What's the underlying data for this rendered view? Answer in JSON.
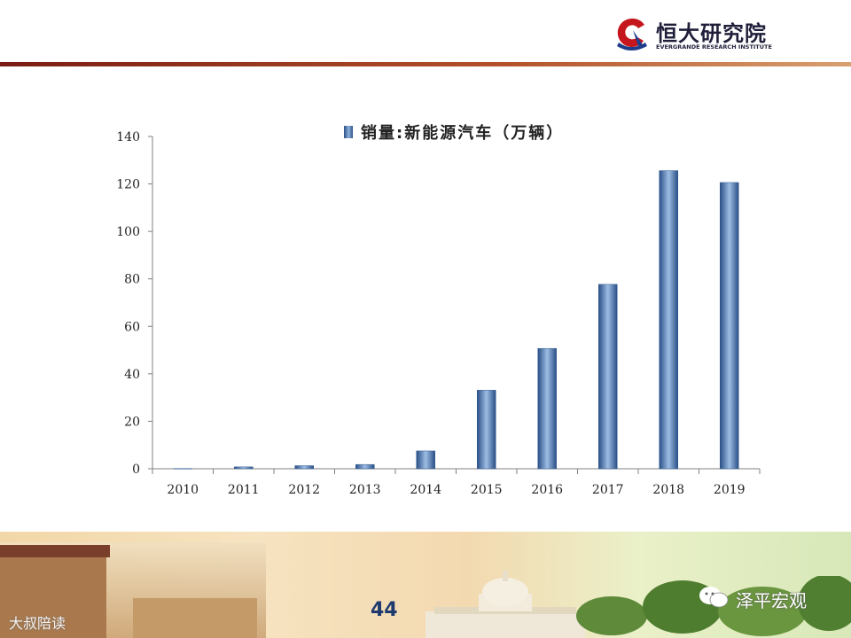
{
  "header": {
    "logo_cn": "恒大研究院",
    "logo_en": "EVERGRANDE RESEARCH INSTITUTE",
    "accent_color": "#8b1a12",
    "logo_blue": "#1f3d8a"
  },
  "chart_data": {
    "type": "bar",
    "categories": [
      "2010",
      "2011",
      "2012",
      "2013",
      "2014",
      "2015",
      "2016",
      "2017",
      "2018",
      "2019"
    ],
    "series": [
      {
        "name": "销量:新能源汽车（万辆）",
        "values": [
          0.1,
          0.8,
          1.3,
          1.8,
          7.5,
          33.1,
          50.7,
          77.7,
          125.6,
          120.6
        ]
      }
    ],
    "ylim": [
      0,
      140
    ],
    "yticks": [
      "0",
      "20",
      "40",
      "60",
      "80",
      "100",
      "120",
      "140"
    ],
    "legend_position": "top-center",
    "grid": false,
    "bar_color": "#4a78b5",
    "xlabel": "",
    "ylabel": ""
  },
  "footer": {
    "page_number": "44",
    "wechat_label": "泽平宏观",
    "watermark": "大叔陪读"
  }
}
